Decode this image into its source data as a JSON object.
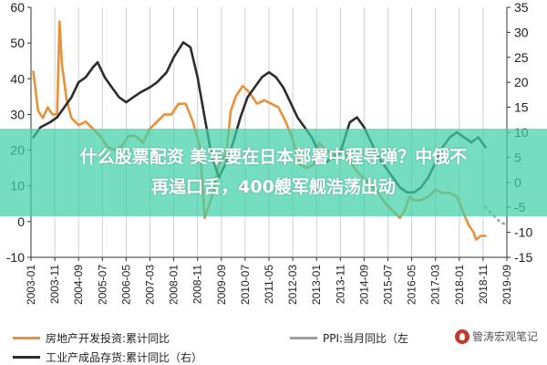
{
  "chart_data": {
    "type": "line",
    "x_ticks": [
      "2003-01",
      "2003-11",
      "2004-09",
      "2005-07",
      "2006-05",
      "2007-03",
      "2008-01",
      "2008-11",
      "2009-09",
      "2010-07",
      "2011-05",
      "2012-03",
      "2013-01",
      "2013-11",
      "2014-09",
      "2015-07",
      "2016-05",
      "2017-03",
      "2018-01",
      "2018-11",
      "2019-09"
    ],
    "x_range": [
      "2003-01",
      "2019-09"
    ],
    "y_left": {
      "min": -10,
      "max": 60,
      "ticks": [
        -10,
        0,
        10,
        20,
        30,
        40,
        50,
        60
      ]
    },
    "y_right": {
      "min": -15,
      "max": 35,
      "ticks": [
        -15,
        -10,
        -5,
        0,
        5,
        10,
        15,
        20,
        25,
        30,
        35
      ]
    },
    "grid": "vertical",
    "series": [
      {
        "name": "房地产开发投资:累计同比",
        "axis": "left",
        "color": "#e8913a",
        "points": [
          [
            "2003-02",
            42
          ],
          [
            "2003-04",
            31
          ],
          [
            "2003-06",
            29
          ],
          [
            "2003-08",
            32
          ],
          [
            "2003-10",
            30
          ],
          [
            "2003-12",
            30
          ],
          [
            "2004-01",
            56
          ],
          [
            "2004-02",
            44
          ],
          [
            "2004-04",
            34
          ],
          [
            "2004-06",
            29
          ],
          [
            "2004-09",
            27
          ],
          [
            "2004-12",
            28
          ],
          [
            "2005-03",
            26
          ],
          [
            "2005-06",
            24
          ],
          [
            "2005-09",
            21
          ],
          [
            "2005-12",
            20
          ],
          [
            "2006-03",
            21
          ],
          [
            "2006-06",
            24
          ],
          [
            "2006-09",
            24
          ],
          [
            "2006-12",
            22
          ],
          [
            "2007-03",
            26
          ],
          [
            "2007-06",
            28
          ],
          [
            "2007-09",
            30
          ],
          [
            "2007-12",
            30
          ],
          [
            "2008-03",
            33
          ],
          [
            "2008-06",
            33
          ],
          [
            "2008-09",
            28
          ],
          [
            "2008-12",
            21
          ],
          [
            "2009-02",
            1
          ],
          [
            "2009-05",
            7
          ],
          [
            "2009-08",
            16
          ],
          [
            "2009-11",
            19
          ],
          [
            "2010-01",
            31
          ],
          [
            "2010-03",
            35
          ],
          [
            "2010-06",
            38
          ],
          [
            "2010-09",
            36
          ],
          [
            "2010-12",
            33
          ],
          [
            "2011-03",
            34
          ],
          [
            "2011-06",
            33
          ],
          [
            "2011-09",
            32
          ],
          [
            "2011-12",
            28
          ],
          [
            "2012-03",
            23
          ],
          [
            "2012-06",
            16
          ],
          [
            "2012-09",
            15
          ],
          [
            "2012-12",
            16
          ],
          [
            "2013-02",
            22
          ],
          [
            "2013-05",
            20
          ],
          [
            "2013-08",
            19
          ],
          [
            "2013-12",
            20
          ],
          [
            "2014-03",
            17
          ],
          [
            "2014-06",
            14
          ],
          [
            "2014-09",
            12
          ],
          [
            "2014-12",
            10
          ],
          [
            "2015-03",
            8
          ],
          [
            "2015-06",
            5
          ],
          [
            "2015-09",
            3
          ],
          [
            "2015-12",
            1
          ],
          [
            "2016-02",
            3
          ],
          [
            "2016-04",
            7
          ],
          [
            "2016-06",
            6
          ],
          [
            "2016-09",
            6
          ],
          [
            "2016-12",
            7
          ],
          [
            "2017-03",
            9
          ],
          [
            "2017-06",
            8
          ],
          [
            "2017-09",
            8
          ],
          [
            "2017-12",
            7
          ],
          [
            "2018-03",
            2
          ],
          [
            "2018-05",
            -1
          ],
          [
            "2018-07",
            -3
          ],
          [
            "2018-08",
            -5
          ],
          [
            "2018-10",
            -4
          ],
          [
            "2018-12",
            -4
          ]
        ]
      },
      {
        "name": "工业产成品存货:累计同比（右）",
        "axis": "right",
        "color": "#2d2d2d",
        "points": [
          [
            "2003-02",
            9
          ],
          [
            "2003-05",
            11
          ],
          [
            "2003-09",
            12
          ],
          [
            "2003-12",
            13
          ],
          [
            "2004-03",
            15
          ],
          [
            "2004-06",
            17
          ],
          [
            "2004-09",
            20
          ],
          [
            "2004-12",
            21
          ],
          [
            "2005-03",
            23
          ],
          [
            "2005-05",
            24
          ],
          [
            "2005-08",
            21
          ],
          [
            "2005-11",
            19
          ],
          [
            "2006-02",
            17
          ],
          [
            "2006-05",
            16
          ],
          [
            "2006-08",
            17
          ],
          [
            "2006-11",
            18
          ],
          [
            "2007-03",
            19
          ],
          [
            "2007-06",
            20
          ],
          [
            "2007-10",
            22
          ],
          [
            "2008-01",
            25
          ],
          [
            "2008-05",
            28
          ],
          [
            "2008-08",
            27
          ],
          [
            "2008-11",
            21
          ],
          [
            "2009-02",
            13
          ],
          [
            "2009-05",
            5
          ],
          [
            "2009-08",
            1
          ],
          [
            "2009-11",
            4
          ],
          [
            "2010-02",
            8
          ],
          [
            "2010-05",
            13
          ],
          [
            "2010-08",
            17
          ],
          [
            "2010-11",
            19
          ],
          [
            "2011-02",
            21
          ],
          [
            "2011-05",
            22
          ],
          [
            "2011-08",
            21
          ],
          [
            "2011-11",
            19
          ],
          [
            "2012-02",
            16
          ],
          [
            "2012-05",
            13
          ],
          [
            "2012-08",
            11
          ],
          [
            "2012-11",
            9
          ],
          [
            "2013-02",
            6
          ],
          [
            "2013-05",
            4
          ],
          [
            "2013-08",
            5
          ],
          [
            "2013-11",
            6
          ],
          [
            "2014-03",
            12
          ],
          [
            "2014-06",
            13
          ],
          [
            "2014-09",
            11
          ],
          [
            "2014-12",
            8
          ],
          [
            "2015-03",
            5
          ],
          [
            "2015-06",
            3
          ],
          [
            "2015-09",
            1
          ],
          [
            "2015-12",
            -1
          ],
          [
            "2016-03",
            -2
          ],
          [
            "2016-06",
            -2
          ],
          [
            "2016-09",
            -1
          ],
          [
            "2016-12",
            1
          ],
          [
            "2017-03",
            4
          ],
          [
            "2017-06",
            7
          ],
          [
            "2017-09",
            9
          ],
          [
            "2017-12",
            10
          ],
          [
            "2018-03",
            9
          ],
          [
            "2018-06",
            8
          ],
          [
            "2018-09",
            9
          ],
          [
            "2018-12",
            7
          ]
        ]
      },
      {
        "name": "PPI:当月同比（左）",
        "axis": "left",
        "color": "#9e9e9e",
        "dash": "dotted",
        "points": [
          [
            "2018-12",
            4
          ],
          [
            "2019-03",
            2
          ],
          [
            "2019-06",
            0
          ],
          [
            "2019-09",
            -1
          ]
        ]
      }
    ]
  },
  "overlay": {
    "line1": "什么股票配资 美军要在日本部署中程导弹？中俄不",
    "line2": "再逞口舌，400艘军舰浩荡出动"
  },
  "legend": {
    "item1": "房地产开发投资:累计同比",
    "item2": "PPI:当月同比（左",
    "item3": "工业产成品存货:累计同比（右）"
  },
  "watermark": {
    "text": "管涛宏观笔记",
    "icon": "logo-icon"
  }
}
